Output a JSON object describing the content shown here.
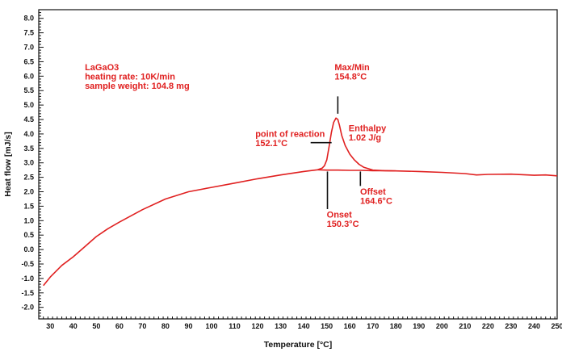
{
  "chart_data": {
    "type": "line",
    "title": "",
    "xlabel": "Temperature [°C]",
    "ylabel": "Heat flow [mJ/s]",
    "xlim": [
      25,
      250
    ],
    "ylim": [
      -2.4,
      8.3
    ],
    "x_ticks": [
      30,
      40,
      50,
      60,
      70,
      80,
      90,
      100,
      110,
      120,
      130,
      140,
      150,
      160,
      170,
      180,
      190,
      200,
      210,
      220,
      230,
      240,
      250
    ],
    "y_ticks": [
      8.0,
      7.5,
      7.0,
      6.5,
      6.0,
      5.5,
      5.0,
      4.5,
      4.0,
      3.5,
      3.0,
      2.5,
      2.0,
      1.5,
      1.0,
      0.5,
      0.0,
      -0.5,
      -1.0,
      -1.5,
      -2.0
    ],
    "grid": false,
    "line_color": "#e02020",
    "series": [
      {
        "x": [
          27,
          30,
          35,
          40,
          45,
          50,
          55,
          60,
          70,
          80,
          90,
          100,
          110,
          120,
          130,
          140,
          146,
          148,
          149,
          150,
          151,
          152,
          153,
          154,
          154.8,
          155.5,
          156.5,
          158,
          160,
          162,
          164,
          166,
          168,
          170,
          175,
          180,
          190,
          200,
          210,
          215,
          220,
          230,
          240,
          245,
          250
        ],
        "y": [
          -1.25,
          -0.95,
          -0.55,
          -0.25,
          0.1,
          0.45,
          0.72,
          0.95,
          1.38,
          1.75,
          2.0,
          2.15,
          2.3,
          2.45,
          2.58,
          2.7,
          2.76,
          2.82,
          2.9,
          3.1,
          3.55,
          4.05,
          4.4,
          4.55,
          4.5,
          4.3,
          3.95,
          3.6,
          3.3,
          3.1,
          2.95,
          2.85,
          2.8,
          2.75,
          2.73,
          2.72,
          2.7,
          2.67,
          2.63,
          2.58,
          2.6,
          2.61,
          2.57,
          2.58,
          2.55
        ]
      },
      {
        "x": [
          146,
          150,
          155,
          160,
          165,
          170,
          175,
          180
        ],
        "y": [
          2.76,
          2.75,
          2.75,
          2.74,
          2.74,
          2.73,
          2.73,
          2.72
        ]
      }
    ],
    "annotations": {
      "sample": {
        "lines": [
          "LaGaO3",
          "heating rate: 10K/min",
          "sample weight: 104.8 mg"
        ],
        "x": 45,
        "y": 6.2
      },
      "maxmin": {
        "lines": [
          "Max/Min",
          "154.8°C"
        ],
        "x": 154.8,
        "y": 6.2,
        "marker": {
          "x": 154.8,
          "y1": 5.3,
          "y2": 4.7
        }
      },
      "reaction": {
        "lines": [
          "point of reaction",
          "152.1°C"
        ],
        "x": 119,
        "y": 3.9,
        "marker": {
          "x1": 143,
          "x2": 152.1,
          "y": 3.7
        }
      },
      "enthalpy": {
        "lines": [
          "Enthalpy",
          "1.02 J/g"
        ],
        "x": 159.5,
        "y": 4.1
      },
      "onset": {
        "lines": [
          "Onset",
          "150.3°C"
        ],
        "x": 150,
        "y": 1.1,
        "marker": {
          "x": 150.3,
          "y1": 2.7,
          "y2": 1.4
        }
      },
      "offset": {
        "lines": [
          "Offset",
          "164.6°C"
        ],
        "x": 164.5,
        "y": 1.9,
        "marker": {
          "x": 164.6,
          "y1": 2.7,
          "y2": 2.2
        }
      }
    }
  }
}
